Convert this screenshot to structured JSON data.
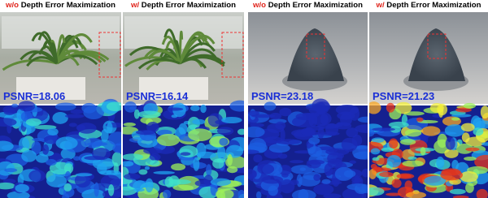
{
  "panels": [
    {
      "header": {
        "prefix": "w/o",
        "text": "Depth Error Maximization"
      },
      "psnr": "PSNR=18.06"
    },
    {
      "header": {
        "prefix": "w/",
        "text": "Depth Error Maximization"
      },
      "psnr": "PSNR=16.14"
    },
    {
      "header": {
        "prefix": "w/o",
        "text": "Depth Error Maximization"
      },
      "psnr": "PSNR=23.18"
    },
    {
      "header": {
        "prefix": "w/",
        "text": "Depth Error Maximization"
      },
      "psnr": "PSNR=21.23"
    }
  ]
}
